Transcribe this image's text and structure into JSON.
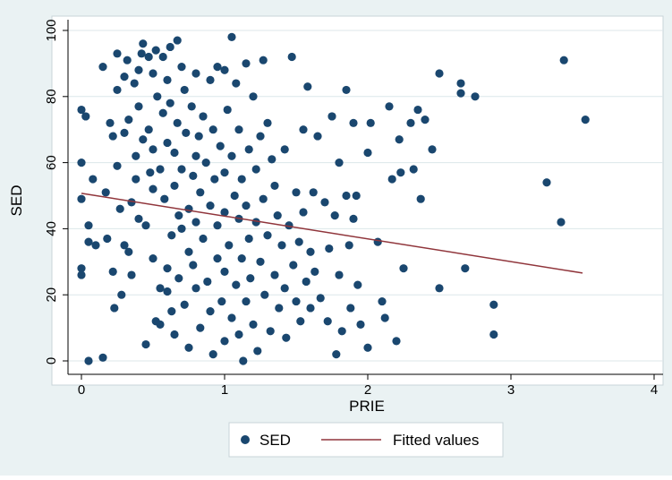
{
  "chart_data": {
    "type": "scatter",
    "xlabel": "PRIE",
    "ylabel": "SED",
    "xlim": [
      0,
      4
    ],
    "ylim": [
      0,
      100
    ],
    "x_ticks": [
      "0",
      "1",
      "2",
      "3",
      "4"
    ],
    "y_ticks": [
      "0",
      "20",
      "40",
      "60",
      "80",
      "100"
    ],
    "grid": "horizontal",
    "legend_position": "bottom",
    "colors": {
      "background": "#eaf2f3",
      "plot_background": "#ffffff",
      "grid": "#dce7ea",
      "marker": "#1a476f",
      "fit_line": "#90353b"
    },
    "series": [
      {
        "name": "SED",
        "kind": "scatter",
        "points": [
          [
            0.0,
            76
          ],
          [
            0.0,
            60
          ],
          [
            0.0,
            49
          ],
          [
            0.0,
            28
          ],
          [
            0.0,
            26
          ],
          [
            0.03,
            74
          ],
          [
            0.05,
            41
          ],
          [
            0.05,
            36
          ],
          [
            0.05,
            0
          ],
          [
            0.1,
            35
          ],
          [
            0.15,
            1
          ],
          [
            0.15,
            89
          ],
          [
            0.17,
            51
          ],
          [
            0.18,
            37
          ],
          [
            0.2,
            72
          ],
          [
            0.22,
            68
          ],
          [
            0.22,
            27
          ],
          [
            0.23,
            16
          ],
          [
            0.25,
            93
          ],
          [
            0.25,
            82
          ],
          [
            0.25,
            59
          ],
          [
            0.27,
            46
          ],
          [
            0.28,
            20
          ],
          [
            0.3,
            86
          ],
          [
            0.3,
            69
          ],
          [
            0.3,
            35
          ],
          [
            0.32,
            91
          ],
          [
            0.33,
            73
          ],
          [
            0.33,
            33
          ],
          [
            0.35,
            26
          ],
          [
            0.35,
            48
          ],
          [
            0.37,
            84
          ],
          [
            0.38,
            62
          ],
          [
            0.38,
            55
          ],
          [
            0.4,
            88
          ],
          [
            0.4,
            77
          ],
          [
            0.4,
            43
          ],
          [
            0.42,
            93
          ],
          [
            0.43,
            96
          ],
          [
            0.43,
            67
          ],
          [
            0.45,
            41
          ],
          [
            0.45,
            5
          ],
          [
            0.47,
            92
          ],
          [
            0.47,
            70
          ],
          [
            0.48,
            57
          ],
          [
            0.5,
            87
          ],
          [
            0.5,
            64
          ],
          [
            0.5,
            52
          ],
          [
            0.5,
            31
          ],
          [
            0.52,
            94
          ],
          [
            0.52,
            12
          ],
          [
            0.53,
            80
          ],
          [
            0.55,
            58
          ],
          [
            0.55,
            22
          ],
          [
            0.55,
            11
          ],
          [
            0.57,
            92
          ],
          [
            0.57,
            75
          ],
          [
            0.58,
            49
          ],
          [
            0.6,
            85
          ],
          [
            0.6,
            66
          ],
          [
            0.6,
            28
          ],
          [
            0.6,
            21
          ],
          [
            0.62,
            95
          ],
          [
            0.62,
            78
          ],
          [
            0.63,
            38
          ],
          [
            0.63,
            15
          ],
          [
            0.65,
            63
          ],
          [
            0.65,
            53
          ],
          [
            0.65,
            8
          ],
          [
            0.67,
            97
          ],
          [
            0.67,
            72
          ],
          [
            0.68,
            44
          ],
          [
            0.68,
            25
          ],
          [
            0.7,
            89
          ],
          [
            0.7,
            58
          ],
          [
            0.7,
            40
          ],
          [
            0.72,
            82
          ],
          [
            0.72,
            17
          ],
          [
            0.73,
            69
          ],
          [
            0.75,
            46
          ],
          [
            0.75,
            33
          ],
          [
            0.75,
            4
          ],
          [
            0.77,
            77
          ],
          [
            0.78,
            56
          ],
          [
            0.78,
            29
          ],
          [
            0.8,
            87
          ],
          [
            0.8,
            62
          ],
          [
            0.8,
            42
          ],
          [
            0.8,
            22
          ],
          [
            0.82,
            68
          ],
          [
            0.83,
            51
          ],
          [
            0.83,
            10
          ],
          [
            0.85,
            74
          ],
          [
            0.85,
            37
          ],
          [
            0.87,
            60
          ],
          [
            0.88,
            24
          ],
          [
            0.9,
            85
          ],
          [
            0.9,
            47
          ],
          [
            0.9,
            15
          ],
          [
            0.92,
            70
          ],
          [
            0.92,
            2
          ],
          [
            0.93,
            55
          ],
          [
            0.95,
            89
          ],
          [
            0.95,
            41
          ],
          [
            0.95,
            31
          ],
          [
            0.97,
            65
          ],
          [
            0.98,
            18
          ],
          [
            1.0,
            88
          ],
          [
            1.0,
            57
          ],
          [
            1.0,
            45
          ],
          [
            1.0,
            27
          ],
          [
            1.0,
            6
          ],
          [
            1.02,
            76
          ],
          [
            1.03,
            35
          ],
          [
            1.05,
            98
          ],
          [
            1.05,
            62
          ],
          [
            1.05,
            13
          ],
          [
            1.07,
            50
          ],
          [
            1.08,
            84
          ],
          [
            1.08,
            23
          ],
          [
            1.1,
            70
          ],
          [
            1.1,
            43
          ],
          [
            1.1,
            8
          ],
          [
            1.12,
            55
          ],
          [
            1.12,
            31
          ],
          [
            1.13,
            0
          ],
          [
            1.15,
            90
          ],
          [
            1.15,
            47
          ],
          [
            1.15,
            18
          ],
          [
            1.17,
            64
          ],
          [
            1.17,
            37
          ],
          [
            1.18,
            25
          ],
          [
            1.2,
            80
          ],
          [
            1.2,
            11
          ],
          [
            1.22,
            58
          ],
          [
            1.22,
            42
          ],
          [
            1.23,
            3
          ],
          [
            1.25,
            68
          ],
          [
            1.25,
            30
          ],
          [
            1.27,
            91
          ],
          [
            1.27,
            49
          ],
          [
            1.28,
            20
          ],
          [
            1.3,
            72
          ],
          [
            1.3,
            38
          ],
          [
            1.32,
            9
          ],
          [
            1.33,
            61
          ],
          [
            1.35,
            53
          ],
          [
            1.35,
            26
          ],
          [
            1.37,
            44
          ],
          [
            1.38,
            16
          ],
          [
            1.4,
            35
          ],
          [
            1.42,
            64
          ],
          [
            1.42,
            22
          ],
          [
            1.43,
            7
          ],
          [
            1.45,
            41
          ],
          [
            1.47,
            92
          ],
          [
            1.48,
            29
          ],
          [
            1.5,
            51
          ],
          [
            1.5,
            18
          ],
          [
            1.52,
            36
          ],
          [
            1.53,
            12
          ],
          [
            1.55,
            70
          ],
          [
            1.55,
            45
          ],
          [
            1.57,
            24
          ],
          [
            1.58,
            83
          ],
          [
            1.6,
            33
          ],
          [
            1.6,
            16
          ],
          [
            1.62,
            51
          ],
          [
            1.63,
            27
          ],
          [
            1.65,
            68
          ],
          [
            1.67,
            19
          ],
          [
            1.7,
            48
          ],
          [
            1.72,
            12
          ],
          [
            1.73,
            34
          ],
          [
            1.75,
            74
          ],
          [
            1.77,
            44
          ],
          [
            1.78,
            2
          ],
          [
            1.8,
            60
          ],
          [
            1.8,
            26
          ],
          [
            1.82,
            9
          ],
          [
            1.85,
            82
          ],
          [
            1.85,
            50
          ],
          [
            1.87,
            35
          ],
          [
            1.88,
            16
          ],
          [
            1.9,
            72
          ],
          [
            1.9,
            43
          ],
          [
            1.92,
            50
          ],
          [
            1.93,
            23
          ],
          [
            1.95,
            11
          ],
          [
            2.0,
            63
          ],
          [
            2.0,
            4
          ],
          [
            2.02,
            72
          ],
          [
            2.07,
            36
          ],
          [
            2.1,
            18
          ],
          [
            2.12,
            13
          ],
          [
            2.15,
            77
          ],
          [
            2.17,
            55
          ],
          [
            2.2,
            6
          ],
          [
            2.22,
            67
          ],
          [
            2.23,
            57
          ],
          [
            2.25,
            28
          ],
          [
            2.3,
            72
          ],
          [
            2.32,
            58
          ],
          [
            2.35,
            76
          ],
          [
            2.37,
            49
          ],
          [
            2.4,
            73
          ],
          [
            2.45,
            64
          ],
          [
            2.5,
            22
          ],
          [
            2.5,
            87
          ],
          [
            2.65,
            84
          ],
          [
            2.65,
            81
          ],
          [
            2.68,
            28
          ],
          [
            2.75,
            80
          ],
          [
            2.88,
            17
          ],
          [
            2.88,
            8
          ],
          [
            3.25,
            54
          ],
          [
            3.35,
            42
          ],
          [
            3.37,
            91
          ],
          [
            3.52,
            73
          ],
          [
            0.08,
            55
          ]
        ]
      },
      {
        "name": "Fitted values",
        "kind": "line",
        "points": [
          [
            0.0,
            50.7
          ],
          [
            3.5,
            26.6
          ]
        ]
      }
    ]
  }
}
